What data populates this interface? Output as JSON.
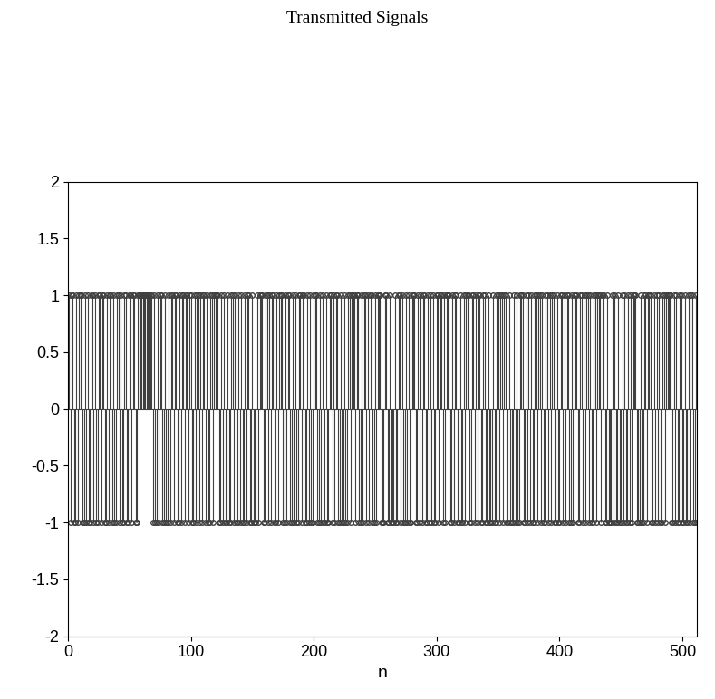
{
  "chart_data": {
    "type": "stem",
    "title": "Transmitted Signals",
    "x_label": "n",
    "x": [
      1,
      2,
      3,
      4,
      5,
      6,
      7,
      8,
      9,
      10,
      11,
      12,
      13,
      14,
      15,
      16,
      17,
      18,
      19,
      20,
      21,
      22,
      23,
      24,
      25,
      26,
      27,
      28,
      29,
      30,
      31,
      32,
      33,
      34,
      35,
      36,
      37,
      38,
      39,
      40,
      41,
      42,
      43,
      44,
      45,
      46,
      47,
      48,
      49,
      50,
      51,
      52,
      53,
      54,
      55,
      56,
      57,
      58,
      59,
      60,
      61,
      62,
      63,
      64,
      65,
      66,
      67,
      68,
      69,
      70,
      71,
      72,
      73,
      74,
      75,
      76,
      77,
      78,
      79,
      80,
      81,
      82,
      83,
      84,
      85,
      86,
      87,
      88,
      89,
      90,
      91,
      92,
      93,
      94,
      95,
      96,
      97,
      98,
      99,
      100,
      101,
      102,
      103,
      104,
      105,
      106,
      107,
      108,
      109,
      110,
      111,
      112,
      113,
      114,
      115,
      116,
      117,
      118,
      119,
      120,
      121,
      122,
      123,
      124,
      125,
      126,
      127,
      128,
      129,
      130,
      131,
      132,
      133,
      134,
      135,
      136,
      137,
      138,
      139,
      140,
      141,
      142,
      143,
      144,
      145,
      146,
      147,
      148,
      149,
      150,
      151,
      152,
      153,
      154,
      155,
      156,
      157,
      158,
      159,
      160,
      161,
      162,
      163,
      164,
      165,
      166,
      167,
      168,
      169,
      170,
      171,
      172,
      173,
      174,
      175,
      176,
      177,
      178,
      179,
      180,
      181,
      182,
      183,
      184,
      185,
      186,
      187,
      188,
      189,
      190,
      191,
      192,
      193,
      194,
      195,
      196,
      197,
      198,
      199,
      200,
      201,
      202,
      203,
      204,
      205,
      206,
      207,
      208,
      209,
      210,
      211,
      212,
      213,
      214,
      215,
      216,
      217,
      218,
      219,
      220,
      221,
      222,
      223,
      224,
      225,
      226,
      227,
      228,
      229,
      230,
      231,
      232,
      233,
      234,
      235,
      236,
      237,
      238,
      239,
      240,
      241,
      242,
      243,
      244,
      245,
      246,
      247,
      248,
      249,
      250,
      251,
      252,
      253,
      254,
      255,
      256,
      257,
      258,
      259,
      260,
      261,
      262,
      263,
      264,
      265,
      266,
      267,
      268,
      269,
      270,
      271,
      272,
      273,
      274,
      275,
      276,
      277,
      278,
      279,
      280,
      281,
      282,
      283,
      284,
      285,
      286,
      287,
      288,
      289,
      290,
      291,
      292,
      293,
      294,
      295,
      296,
      297,
      298,
      299,
      300,
      301,
      302,
      303,
      304,
      305,
      306,
      307,
      308,
      309,
      310,
      311,
      312,
      313,
      314,
      315,
      316,
      317,
      318,
      319,
      320,
      321,
      322,
      323,
      324,
      325,
      326,
      327,
      328,
      329,
      330,
      331,
      332,
      333,
      334,
      335,
      336,
      337,
      338,
      339,
      340,
      341,
      342,
      343,
      344,
      345,
      346,
      347,
      348,
      349,
      350,
      351,
      352,
      353,
      354,
      355,
      356,
      357,
      358,
      359,
      360,
      361,
      362,
      363,
      364,
      365,
      366,
      367,
      368,
      369,
      370,
      371,
      372,
      373,
      374,
      375,
      376,
      377,
      378,
      379,
      380,
      381,
      382,
      383,
      384,
      385,
      386,
      387,
      388,
      389,
      390,
      391,
      392,
      393,
      394,
      395,
      396,
      397,
      398,
      399,
      400,
      401,
      402,
      403,
      404,
      405,
      406,
      407,
      408,
      409,
      410,
      411,
      412,
      413,
      414,
      415,
      416,
      417,
      418,
      419,
      420,
      421,
      422,
      423,
      424,
      425,
      426,
      427,
      428,
      429,
      430,
      431,
      432,
      433,
      434,
      435,
      436,
      437,
      438,
      439,
      440,
      441,
      442,
      443,
      444,
      445,
      446,
      447,
      448,
      449,
      450,
      451,
      452,
      453,
      454,
      455,
      456,
      457,
      458,
      459,
      460,
      461,
      462,
      463,
      464,
      465,
      466,
      467,
      468,
      469,
      470,
      471,
      472,
      473,
      474,
      475,
      476,
      477,
      478,
      479,
      480,
      481,
      482,
      483,
      484,
      485,
      486,
      487,
      488,
      489,
      490,
      491,
      492,
      493,
      494,
      495,
      496,
      497,
      498,
      499,
      500,
      501,
      502,
      503,
      504,
      505,
      506,
      507,
      508,
      509,
      510,
      511,
      512
    ],
    "values": [
      1,
      -1,
      1,
      1,
      -1,
      -1,
      1,
      -1,
      1,
      1,
      1,
      -1,
      -1,
      1,
      -1,
      1,
      -1,
      -1,
      1,
      1,
      -1,
      1,
      -1,
      -1,
      1,
      1,
      -1,
      1,
      1,
      -1,
      -1,
      1,
      -1,
      1,
      1,
      -1,
      1,
      -1,
      -1,
      1,
      1,
      -1,
      1,
      -1,
      -1,
      1,
      1,
      -1,
      -1,
      1,
      1,
      -1,
      1,
      1,
      -1,
      -1,
      1,
      1,
      1,
      1,
      1,
      1,
      1,
      1,
      1,
      1,
      1,
      1,
      -1,
      1,
      -1,
      -1,
      1,
      -1,
      1,
      1,
      -1,
      -1,
      1,
      -1,
      -1,
      1,
      -1,
      1,
      1,
      -1,
      1,
      1,
      -1,
      -1,
      1,
      -1,
      1,
      1,
      -1,
      1,
      1,
      -1,
      1,
      1,
      -1,
      -1,
      1,
      -1,
      1,
      1,
      -1,
      1,
      -1,
      1,
      1,
      -1,
      1,
      -1,
      -1,
      1,
      1,
      -1,
      1,
      1,
      1,
      1,
      -1,
      -1,
      1,
      -1,
      1,
      -1,
      -1,
      1,
      -1,
      -1,
      1,
      1,
      -1,
      1,
      -1,
      -1,
      1,
      -1,
      1,
      -1,
      -1,
      1,
      -1,
      1,
      1,
      -1,
      -1,
      1,
      -1,
      -1,
      -1,
      1,
      -1,
      1,
      1,
      1,
      -1,
      -1,
      1,
      1,
      -1,
      1,
      -1,
      1,
      1,
      -1,
      -1,
      1,
      -1,
      1,
      1,
      1,
      -1,
      -1,
      1,
      -1,
      1,
      1,
      -1,
      -1,
      1,
      -1,
      1,
      -1,
      -1,
      1,
      1,
      -1,
      1,
      1,
      -1,
      -1,
      1,
      -1,
      1,
      -1,
      -1,
      1,
      1,
      1,
      -1,
      -1,
      1,
      -1,
      1,
      -1,
      -1,
      1,
      -1,
      -1,
      1,
      1,
      -1,
      1,
      -1,
      1,
      1,
      -1,
      -1,
      1,
      -1,
      -1,
      1,
      -1,
      -1,
      1,
      1,
      -1,
      1,
      1,
      1,
      -1,
      1,
      1,
      -1,
      -1,
      1,
      -1,
      1,
      1,
      -1,
      1,
      -1,
      1,
      1,
      -1,
      -1,
      1,
      -1,
      1,
      1,
      1,
      -1,
      -1,
      -1,
      1,
      1,
      -1,
      -1,
      1,
      -1,
      -1,
      -1,
      1,
      -1,
      -1,
      1,
      1,
      -1,
      1,
      -1,
      -1,
      1,
      -1,
      1,
      -1,
      -1,
      1,
      1,
      1,
      -1,
      -1,
      1,
      -1,
      1,
      -1,
      1,
      1,
      -1,
      -1,
      1,
      -1,
      1,
      -1,
      1,
      -1,
      -1,
      1,
      1,
      -1,
      1,
      1,
      -1,
      1,
      -1,
      1,
      1,
      1,
      -1,
      -1,
      1,
      -1,
      1,
      1,
      -1,
      -1,
      1,
      -1,
      -1,
      1,
      -1,
      1,
      1,
      1,
      -1,
      -1,
      1,
      1,
      -1,
      1,
      -1,
      1,
      1,
      -1,
      -1,
      1,
      1,
      -1,
      -1,
      1,
      -1,
      -1,
      -1,
      1,
      -1,
      -1,
      1,
      1,
      -1,
      1,
      1,
      -1,
      1,
      1,
      -1,
      -1,
      1,
      -1,
      -1,
      -1,
      1,
      -1,
      1,
      -1,
      -1,
      1,
      1,
      1,
      -1,
      -1,
      1,
      -1,
      1,
      -1,
      1,
      -1,
      -1,
      1,
      1,
      -1,
      1,
      1,
      -1,
      1,
      -1,
      -1,
      1,
      1,
      -1,
      1,
      -1,
      1,
      1,
      -1,
      -1,
      1,
      -1,
      -1,
      1,
      1,
      -1,
      1,
      -1,
      1,
      1,
      -1,
      -1,
      1,
      -1,
      1,
      1,
      1,
      -1,
      -1,
      1,
      1,
      -1,
      1,
      -1,
      1,
      1,
      -1,
      1,
      -1,
      -1,
      1,
      1,
      -1,
      1,
      1,
      1,
      -1,
      1,
      1,
      -1,
      -1,
      1,
      -1,
      -1,
      -1,
      1,
      -1,
      1,
      -1,
      -1,
      1,
      -1,
      -1,
      1,
      -1,
      1,
      -1,
      -1,
      1,
      -1,
      1,
      -1,
      1,
      1,
      1,
      -1,
      -1,
      -1,
      1,
      -1,
      -1,
      1,
      1,
      -1,
      1,
      1,
      1,
      -1,
      -1,
      1,
      -1,
      1,
      -1,
      1,
      -1,
      -1,
      1,
      1,
      -1,
      1,
      1,
      1,
      1,
      -1,
      -1,
      1,
      -1,
      1,
      -1,
      -1,
      1,
      1,
      -1,
      -1,
      1,
      -1,
      -1,
      1,
      -1,
      1,
      1,
      -1,
      -1,
      1,
      -1
    ],
    "color": "#404040",
    "marker": "circle",
    "xlim": [
      0,
      512
    ],
    "ylim": [
      -2,
      2
    ],
    "xticks": [
      0,
      100,
      200,
      300,
      400,
      500
    ],
    "yticks": [
      -2,
      -1.5,
      -1,
      -0.5,
      0,
      0.5,
      1,
      1.5,
      2
    ]
  }
}
